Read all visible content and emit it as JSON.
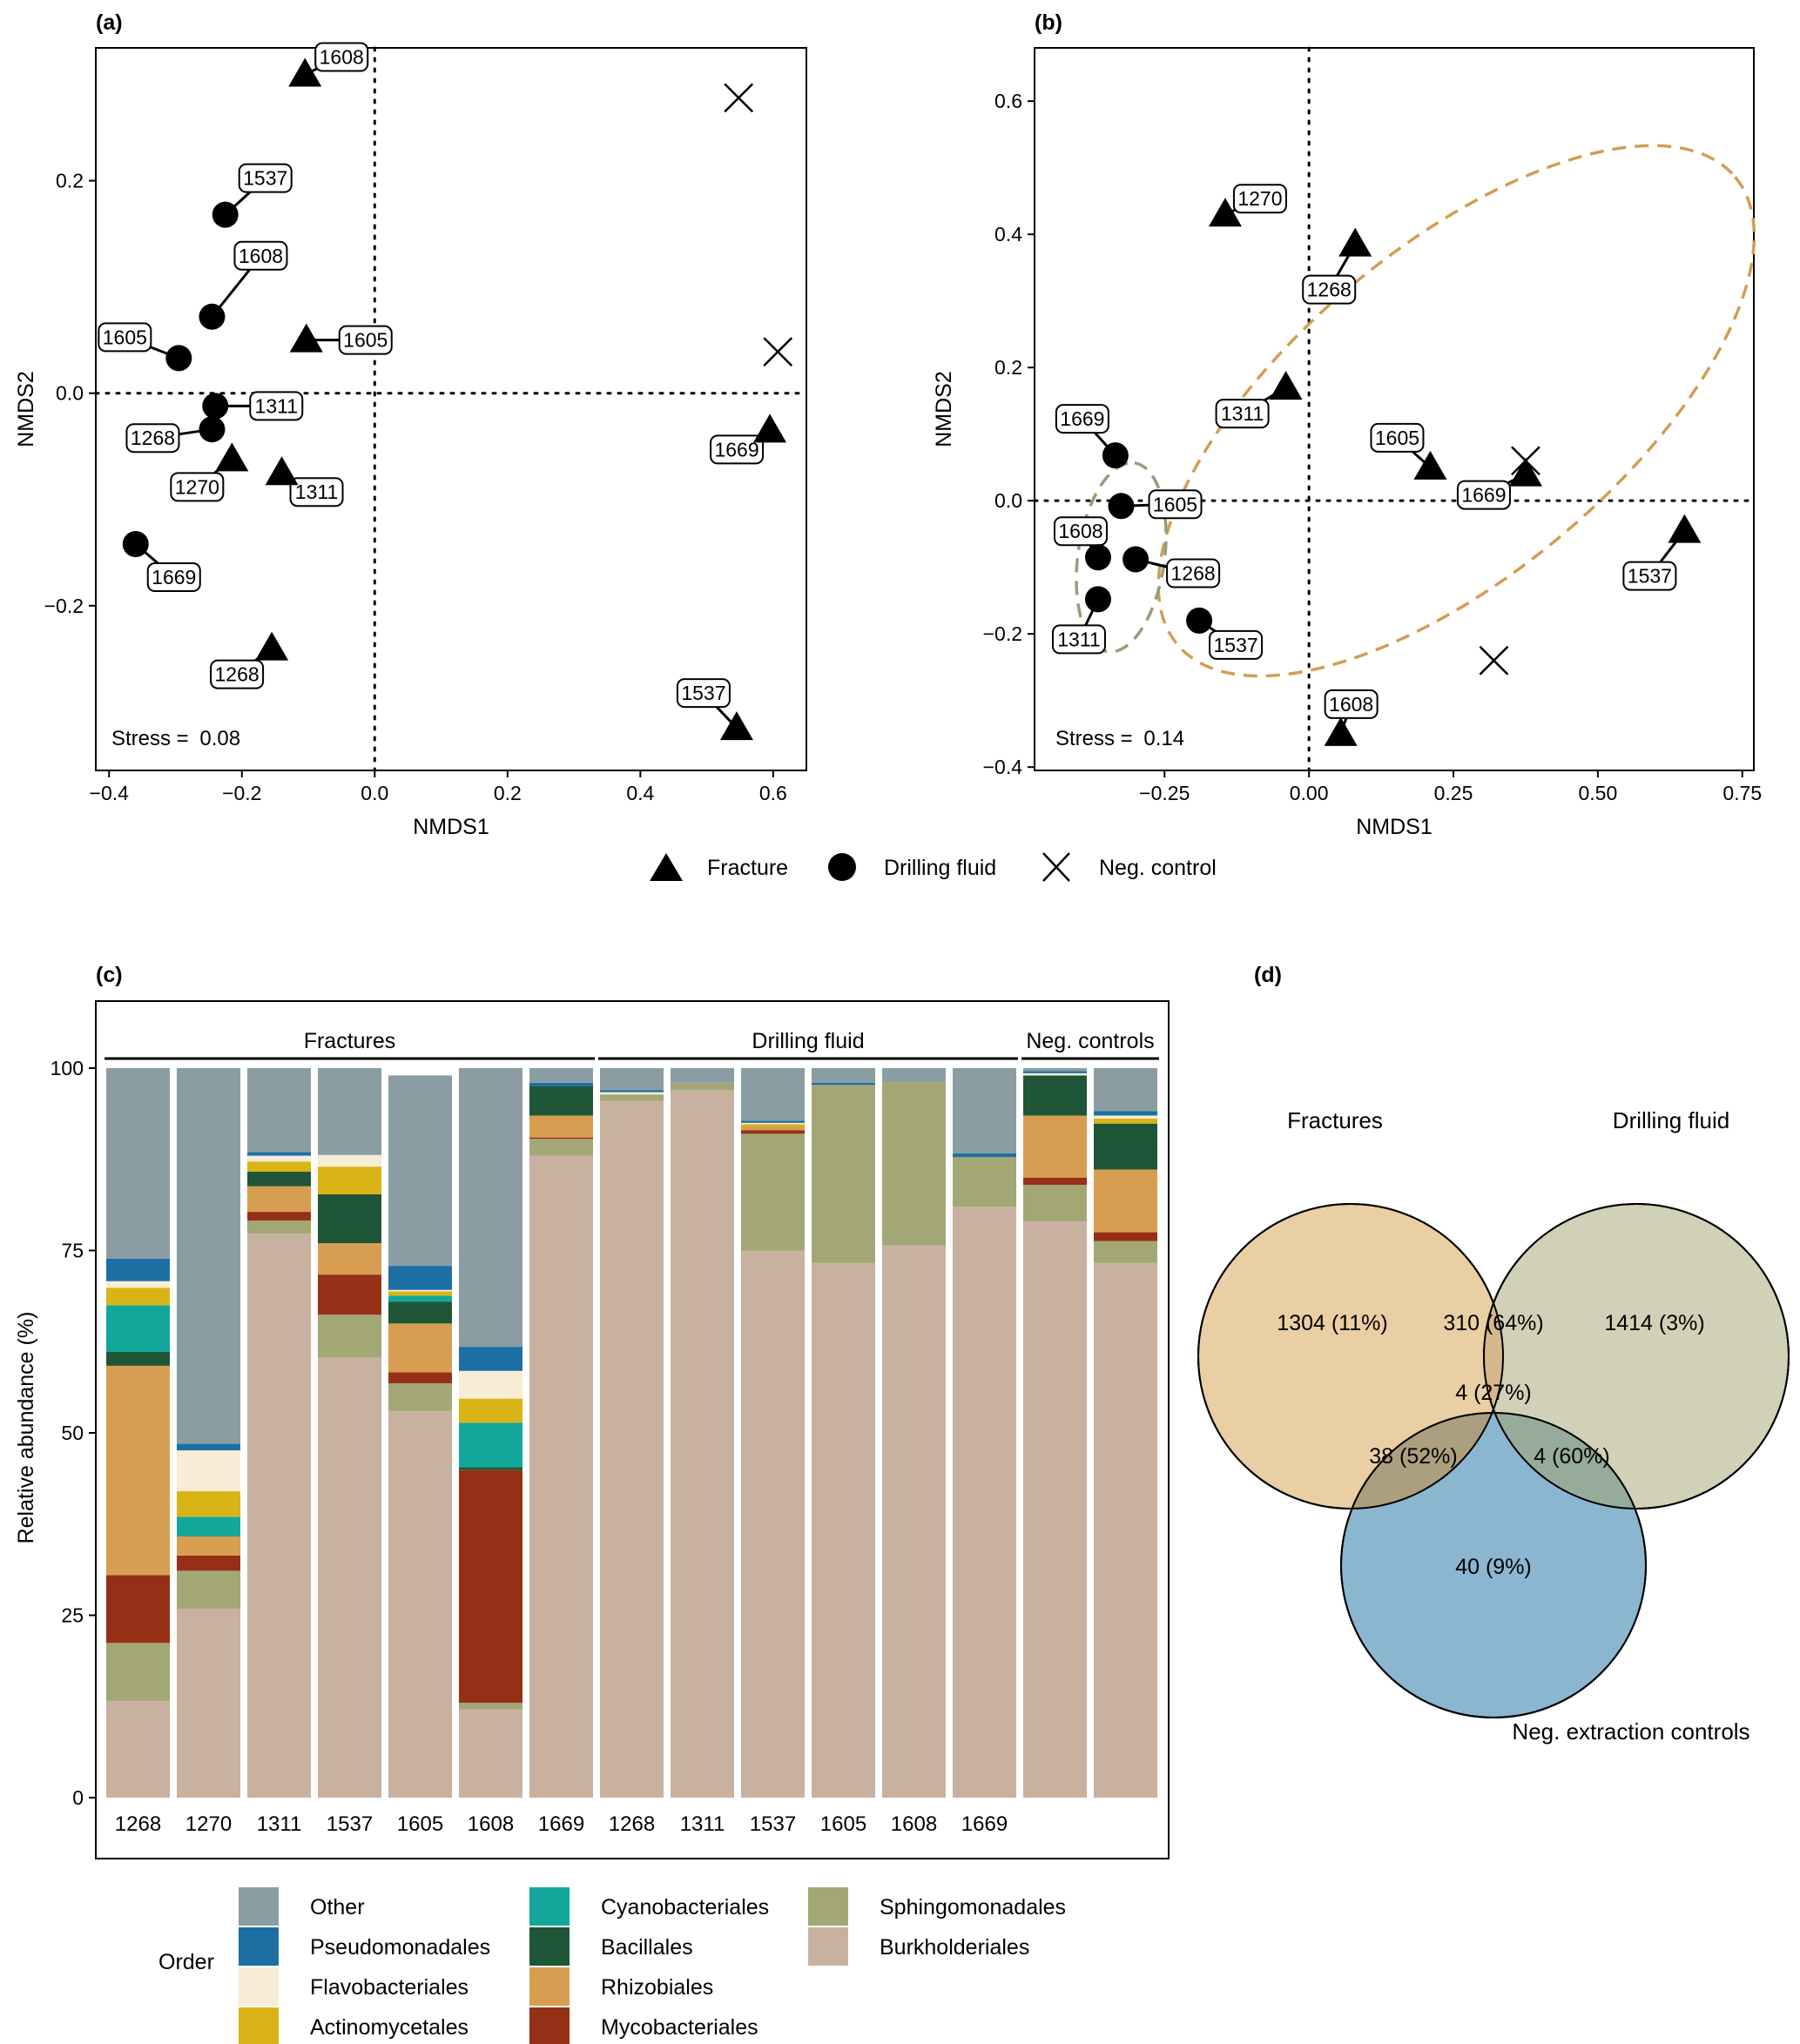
{
  "panel_labels": {
    "a": "(a)",
    "b": "(b)",
    "c": "(c)",
    "d": "(d)"
  },
  "colors": {
    "orders": {
      "Other": "#8a9da3",
      "Pseudomonadales": "#1d6fa3",
      "Flavobacteriales": "#f8ecd5",
      "Actinomycetales": "#dab417",
      "Cyanobacteriales": "#13a79c",
      "Bacillales": "#1e5637",
      "Rhizobiales": "#d79e51",
      "Mycobacteriales": "#953017",
      "Sphingomonadales": "#a3a775",
      "Burkholderiales": "#c8b19f"
    },
    "ellipse_fracture": "#d39d52",
    "ellipse_drilling": "#90a07c",
    "venn_fractures": "#e9cb9f",
    "venn_drilling": "#cfcfb3",
    "venn_controls": "#84b2cd"
  },
  "legend_shapes": {
    "items": [
      {
        "shape": "triangle",
        "label": "Fracture"
      },
      {
        "shape": "circle",
        "label": "Drilling fluid"
      },
      {
        "shape": "cross",
        "label": "Neg. control"
      }
    ]
  },
  "chart_data": [
    {
      "id": "a",
      "type": "scatter",
      "xlabel": "NMDS1",
      "ylabel": "NMDS2",
      "xlim": [
        -0.42,
        0.65
      ],
      "ylim": [
        -0.355,
        0.325
      ],
      "xticks": [
        -0.4,
        -0.2,
        0.0,
        0.2,
        0.4,
        0.6
      ],
      "yticks": [
        -0.2,
        0.0,
        0.2
      ],
      "xtick_labels": [
        "−0.4",
        "−0.2",
        "0.0",
        "0.2",
        "0.4",
        "0.6"
      ],
      "ytick_labels": [
        "−0.2",
        "0.0",
        "0.2"
      ],
      "stress_label": "Stress =",
      "stress_value": "0.08",
      "points": [
        {
          "group": "Fracture",
          "label": "1608",
          "x": -0.105,
          "y": 0.3
        },
        {
          "group": "Fracture",
          "label": "1605",
          "x": -0.103,
          "y": 0.05
        },
        {
          "group": "Fracture",
          "label": "1270",
          "x": -0.215,
          "y": -0.062
        },
        {
          "group": "Fracture",
          "label": "1311",
          "x": -0.14,
          "y": -0.075
        },
        {
          "group": "Fracture",
          "label": "1268",
          "x": -0.155,
          "y": -0.24
        },
        {
          "group": "Fracture",
          "label": "1669",
          "x": 0.595,
          "y": -0.035
        },
        {
          "group": "Fracture",
          "label": "1537",
          "x": 0.545,
          "y": -0.315
        },
        {
          "group": "Drilling fluid",
          "label": "1537",
          "x": -0.225,
          "y": 0.168
        },
        {
          "group": "Drilling fluid",
          "label": "1608",
          "x": -0.245,
          "y": 0.072
        },
        {
          "group": "Drilling fluid",
          "label": "1605",
          "x": -0.295,
          "y": 0.033
        },
        {
          "group": "Drilling fluid",
          "label": "1311",
          "x": -0.24,
          "y": -0.012
        },
        {
          "group": "Drilling fluid",
          "label": "1268",
          "x": -0.245,
          "y": -0.034
        },
        {
          "group": "Drilling fluid",
          "label": "1669",
          "x": -0.36,
          "y": -0.142
        },
        {
          "group": "Neg. control",
          "label": "",
          "x": 0.548,
          "y": 0.278
        },
        {
          "group": "Neg. control",
          "label": "",
          "x": 0.607,
          "y": 0.039
        }
      ]
    },
    {
      "id": "b",
      "type": "scatter",
      "xlabel": "NMDS1",
      "ylabel": "NMDS2",
      "xlim": [
        -0.475,
        0.77
      ],
      "ylim": [
        -0.405,
        0.68
      ],
      "xticks": [
        -0.25,
        0.0,
        0.25,
        0.5,
        0.75
      ],
      "yticks": [
        -0.4,
        -0.2,
        0.0,
        0.2,
        0.4,
        0.6
      ],
      "xtick_labels": [
        "−0.25",
        "0.00",
        "0.25",
        "0.50",
        "0.75"
      ],
      "ytick_labels": [
        "−0.4",
        "−0.2",
        "0.0",
        "0.2",
        "0.4",
        "0.6"
      ],
      "stress_label": "Stress =",
      "stress_value": "0.14",
      "points": [
        {
          "group": "Fracture",
          "label": "1270",
          "x": -0.145,
          "y": 0.43
        },
        {
          "group": "Fracture",
          "label": "1268",
          "x": 0.08,
          "y": 0.385
        },
        {
          "group": "Fracture",
          "label": "1311",
          "x": -0.04,
          "y": 0.17
        },
        {
          "group": "Fracture",
          "label": "1605",
          "x": 0.21,
          "y": 0.05
        },
        {
          "group": "Fracture",
          "label": "1669",
          "x": 0.375,
          "y": 0.04
        },
        {
          "group": "Fracture",
          "label": "1537",
          "x": 0.65,
          "y": -0.045
        },
        {
          "group": "Fracture",
          "label": "1608",
          "x": 0.055,
          "y": -0.35
        },
        {
          "group": "Drilling fluid",
          "label": "1669",
          "x": -0.335,
          "y": 0.068
        },
        {
          "group": "Drilling fluid",
          "label": "1605",
          "x": -0.325,
          "y": -0.008
        },
        {
          "group": "Drilling fluid",
          "label": "1608",
          "x": -0.365,
          "y": -0.085
        },
        {
          "group": "Drilling fluid",
          "label": "1268",
          "x": -0.3,
          "y": -0.088
        },
        {
          "group": "Drilling fluid",
          "label": "1311",
          "x": -0.365,
          "y": -0.148
        },
        {
          "group": "Drilling fluid",
          "label": "1537",
          "x": -0.19,
          "y": -0.18
        },
        {
          "group": "Neg. control",
          "label": "",
          "x": 0.375,
          "y": 0.06
        },
        {
          "group": "Neg. control",
          "label": "",
          "x": 0.32,
          "y": -0.24
        }
      ],
      "ellipses": [
        {
          "group": "Fracture",
          "cx": 0.255,
          "cy": 0.135,
          "rx": 0.63,
          "ry": 0.245,
          "angle_deg": -40
        },
        {
          "group": "Drilling fluid",
          "cx": -0.325,
          "cy": -0.085,
          "rx": 0.165,
          "ry": 0.065,
          "angle_deg": -82
        }
      ]
    },
    {
      "id": "c",
      "type": "bar",
      "stacked": true,
      "ylabel": "Relative abundance (%)",
      "ylim": [
        0,
        100
      ],
      "yticks": [
        0,
        25,
        50,
        75,
        100
      ],
      "legend_title": "Order",
      "categories": [
        "1268",
        "1270",
        "1311",
        "1537",
        "1605",
        "1608",
        "1669",
        "1268",
        "1311",
        "1537",
        "1605",
        "1608",
        "1669",
        "",
        ""
      ],
      "groups": [
        {
          "label": "Fractures",
          "from": 0,
          "to": 6
        },
        {
          "label": "Drilling fluid",
          "from": 7,
          "to": 12
        },
        {
          "label": "Neg. controls",
          "from": 13,
          "to": 14
        }
      ],
      "series_order": [
        "Burkholderiales",
        "Sphingomonadales",
        "Mycobacteriales",
        "Rhizobiales",
        "Bacillales",
        "Cyanobacteriales",
        "Actinomycetales",
        "Flavobacteriales",
        "Pseudomonadales",
        "Other"
      ],
      "series": [
        {
          "name": "Burkholderiales",
          "values": [
            13.3,
            25.9,
            77.3,
            60.3,
            53.0,
            12.1,
            88.0,
            95.5,
            97.0,
            75.0,
            73.3,
            75.7,
            81.0,
            79.0,
            73.3
          ]
        },
        {
          "name": "Sphingomonadales",
          "values": [
            7.9,
            5.2,
            1.8,
            5.9,
            3.8,
            0.9,
            2.3,
            0.9,
            1.0,
            16.0,
            24.4,
            22.4,
            6.8,
            5.0,
            3.0
          ]
        },
        {
          "name": "Mycobacteriales",
          "values": [
            9.3,
            2.1,
            1.2,
            5.5,
            1.5,
            31.9,
            0.2,
            0,
            0,
            0.5,
            0,
            0,
            0,
            1.0,
            1.2
          ]
        },
        {
          "name": "Rhizobiales",
          "values": [
            28.7,
            2.6,
            3.5,
            4.3,
            6.7,
            0,
            3.0,
            0,
            0,
            0.5,
            0,
            0,
            0,
            8.5,
            8.6
          ]
        },
        {
          "name": "Bacillales",
          "values": [
            1.9,
            0,
            2.0,
            6.7,
            3.0,
            0.4,
            4.0,
            0,
            0,
            0,
            0,
            0,
            0,
            5.5,
            6.3
          ]
        },
        {
          "name": "Cyanobacteriales",
          "values": [
            6.4,
            2.7,
            0,
            0,
            0.8,
            6.1,
            0,
            0,
            0,
            0,
            0,
            0,
            0,
            0,
            0
          ]
        },
        {
          "name": "Actinomycetales",
          "values": [
            2.4,
            3.5,
            1.4,
            3.8,
            0.6,
            3.3,
            0,
            0,
            0,
            0.3,
            0,
            0,
            0,
            0,
            0.7
          ]
        },
        {
          "name": "Flavobacteriales",
          "values": [
            0.9,
            5.6,
            0.8,
            1.6,
            0.2,
            3.8,
            0,
            0.3,
            0,
            0.2,
            0,
            0,
            0,
            0.3,
            0.4
          ]
        },
        {
          "name": "Pseudomonadales",
          "values": [
            3.1,
            0.9,
            0.5,
            0,
            3.3,
            3.3,
            0.5,
            0.3,
            0,
            0.3,
            0.3,
            0,
            0.5,
            0.3,
            0.6
          ]
        },
        {
          "name": "Other",
          "values": [
            26.1,
            51.5,
            11.5,
            11.9,
            26.1,
            38.2,
            2.0,
            3.0,
            2.0,
            7.2,
            2.0,
            1.9,
            11.7,
            0.4,
            5.9
          ]
        }
      ]
    },
    {
      "id": "d",
      "type": "venn",
      "sets": [
        "Fractures",
        "Drilling fluid",
        "Neg. extraction controls"
      ],
      "regions": {
        "fractures_only": "1304 (11%)",
        "fractures_drilling": "310 (64%)",
        "drilling_only": "1414 (3%)",
        "all_three": "4 (27%)",
        "fractures_controls": "38 (52%)",
        "drilling_controls": "4 (60%)",
        "controls_only": "40 (9%)"
      }
    }
  ]
}
